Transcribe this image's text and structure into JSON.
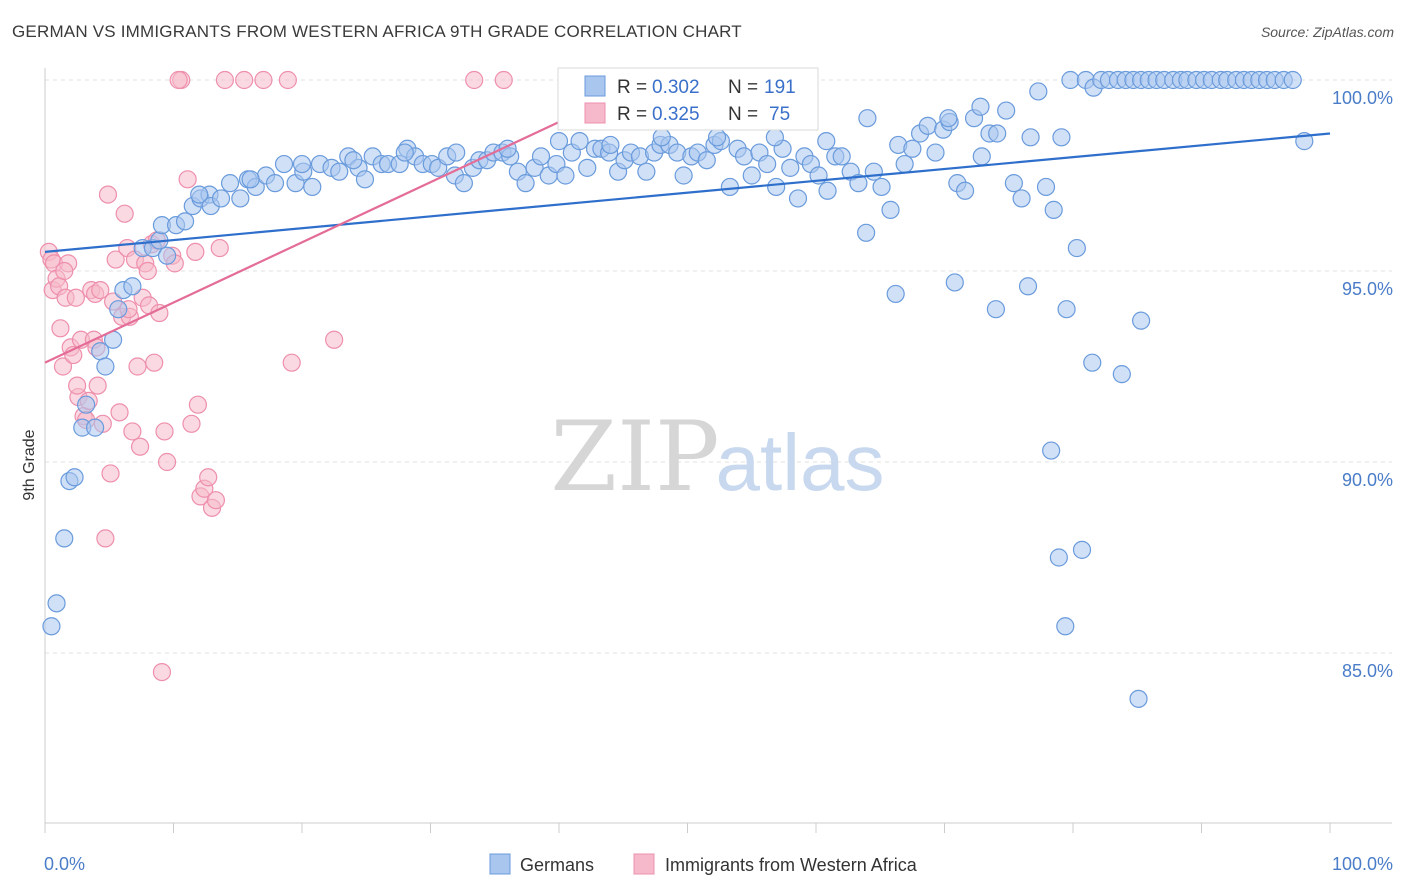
{
  "title": "GERMAN VS IMMIGRANTS FROM WESTERN AFRICA 9TH GRADE CORRELATION CHART",
  "source": "Source: ZipAtlas.com",
  "watermark": {
    "zip": "ZIP",
    "atlas": "atlas"
  },
  "colors": {
    "blue_fill": "#a9c6ee",
    "blue_stroke": "#6a9bdc",
    "blue_line": "#2f6fcc",
    "pink_fill": "#f6b9cb",
    "pink_stroke": "#ee8fac",
    "pink_line": "#e46d98",
    "grid": "#e2e2e2",
    "axis": "#cccccc",
    "tick_text": "#4a7cc8"
  },
  "legend": {
    "series": [
      {
        "r_label": "R = ",
        "r_value": "0.302",
        "n_label": "N = ",
        "n_value": "191"
      },
      {
        "r_label": "R = ",
        "r_value": "0.325",
        "n_label": "N = ",
        "n_value": "75"
      }
    ]
  },
  "chart_data": {
    "type": "scatter",
    "title": "GERMAN VS IMMIGRANTS FROM WESTERN AFRICA 9TH GRADE CORRELATION CHART",
    "xlabel": "",
    "ylabel": "9th Grade",
    "xlim": [
      0,
      100
    ],
    "ylim": [
      80.0,
      101.0
    ],
    "x_tick_labels": [
      "0.0%",
      "100.0%"
    ],
    "y_ticks": [
      85.0,
      90.0,
      95.0,
      100.0
    ],
    "y_tick_labels": [
      "85.0%",
      "90.0%",
      "95.0%",
      "100.0%"
    ],
    "grid": true,
    "legend_position": "top-center",
    "series": [
      {
        "name": "Germans",
        "color": "#a9c6ee",
        "trendline": {
          "x": [
            0,
            100
          ],
          "y": [
            95.5,
            98.6
          ]
        },
        "points": [
          [
            0.5,
            85.7
          ],
          [
            0.9,
            86.3
          ],
          [
            1.5,
            88.0
          ],
          [
            1.9,
            89.5
          ],
          [
            2.3,
            89.6
          ],
          [
            2.9,
            90.9
          ],
          [
            3.2,
            91.5
          ],
          [
            3.9,
            90.9
          ],
          [
            4.3,
            92.9
          ],
          [
            4.7,
            92.5
          ],
          [
            5.3,
            93.2
          ],
          [
            5.7,
            94.0
          ],
          [
            6.1,
            94.5
          ],
          [
            6.8,
            94.6
          ],
          [
            7.6,
            95.6
          ],
          [
            8.4,
            95.6
          ],
          [
            8.9,
            95.8
          ],
          [
            9.5,
            95.4
          ],
          [
            9.1,
            96.2
          ],
          [
            10.2,
            96.2
          ],
          [
            10.9,
            96.3
          ],
          [
            11.5,
            96.7
          ],
          [
            12.1,
            96.9
          ],
          [
            12.8,
            97.0
          ],
          [
            12.9,
            96.7
          ],
          [
            13.7,
            96.9
          ],
          [
            14.4,
            97.3
          ],
          [
            15.2,
            96.9
          ],
          [
            15.8,
            97.4
          ],
          [
            16.4,
            97.2
          ],
          [
            17.2,
            97.5
          ],
          [
            17.9,
            97.3
          ],
          [
            18.6,
            97.8
          ],
          [
            19.5,
            97.3
          ],
          [
            20.1,
            97.6
          ],
          [
            20.8,
            97.2
          ],
          [
            21.4,
            97.8
          ],
          [
            22.3,
            97.7
          ],
          [
            22.9,
            97.6
          ],
          [
            23.6,
            98.0
          ],
          [
            24.4,
            97.7
          ],
          [
            24.9,
            97.4
          ],
          [
            25.5,
            98.0
          ],
          [
            26.2,
            97.8
          ],
          [
            26.7,
            97.8
          ],
          [
            27.6,
            97.8
          ],
          [
            28.2,
            98.2
          ],
          [
            28.8,
            98.0
          ],
          [
            29.4,
            97.8
          ],
          [
            30.1,
            97.8
          ],
          [
            30.6,
            97.7
          ],
          [
            31.3,
            98.0
          ],
          [
            31.9,
            97.5
          ],
          [
            32.6,
            97.3
          ],
          [
            33.3,
            97.7
          ],
          [
            33.8,
            97.9
          ],
          [
            34.4,
            97.9
          ],
          [
            34.9,
            98.1
          ],
          [
            35.6,
            98.1
          ],
          [
            36.2,
            98.0
          ],
          [
            36.8,
            97.6
          ],
          [
            37.4,
            97.3
          ],
          [
            38.1,
            97.7
          ],
          [
            38.6,
            98.0
          ],
          [
            39.2,
            97.5
          ],
          [
            39.8,
            97.8
          ],
          [
            40.5,
            97.5
          ],
          [
            41.0,
            98.1
          ],
          [
            41.6,
            98.4
          ],
          [
            42.2,
            97.7
          ],
          [
            42.8,
            98.2
          ],
          [
            43.3,
            98.2
          ],
          [
            43.9,
            98.1
          ],
          [
            44.6,
            97.6
          ],
          [
            45.1,
            97.9
          ],
          [
            45.6,
            98.1
          ],
          [
            46.3,
            98.0
          ],
          [
            46.8,
            97.6
          ],
          [
            47.4,
            98.1
          ],
          [
            47.9,
            98.3
          ],
          [
            48.6,
            98.3
          ],
          [
            49.2,
            98.1
          ],
          [
            49.7,
            97.5
          ],
          [
            50.3,
            98.0
          ],
          [
            50.8,
            98.1
          ],
          [
            51.5,
            97.9
          ],
          [
            52.1,
            98.3
          ],
          [
            52.6,
            98.4
          ],
          [
            53.3,
            97.2
          ],
          [
            53.9,
            98.2
          ],
          [
            54.4,
            98.0
          ],
          [
            55.0,
            97.5
          ],
          [
            55.6,
            98.1
          ],
          [
            56.2,
            97.8
          ],
          [
            56.9,
            97.2
          ],
          [
            57.4,
            98.2
          ],
          [
            58.0,
            97.7
          ],
          [
            58.6,
            96.9
          ],
          [
            59.1,
            98.0
          ],
          [
            59.6,
            97.8
          ],
          [
            60.2,
            97.5
          ],
          [
            60.9,
            97.1
          ],
          [
            61.5,
            98.0
          ],
          [
            62.0,
            98.0
          ],
          [
            62.7,
            97.6
          ],
          [
            63.3,
            97.3
          ],
          [
            63.9,
            96.0
          ],
          [
            64.5,
            97.6
          ],
          [
            65.1,
            97.2
          ],
          [
            65.8,
            96.6
          ],
          [
            66.4,
            98.3
          ],
          [
            66.9,
            97.8
          ],
          [
            67.5,
            98.2
          ],
          [
            68.1,
            98.6
          ],
          [
            68.7,
            98.8
          ],
          [
            69.3,
            98.1
          ],
          [
            69.9,
            98.7
          ],
          [
            70.4,
            98.9
          ],
          [
            71.0,
            97.3
          ],
          [
            71.6,
            97.1
          ],
          [
            72.3,
            99.0
          ],
          [
            72.9,
            98.0
          ],
          [
            73.5,
            98.6
          ],
          [
            74.1,
            98.6
          ],
          [
            74.8,
            99.2
          ],
          [
            75.4,
            97.3
          ],
          [
            76.0,
            96.9
          ],
          [
            76.7,
            98.5
          ],
          [
            77.3,
            99.7
          ],
          [
            77.9,
            97.2
          ],
          [
            78.5,
            96.6
          ],
          [
            79.1,
            98.5
          ],
          [
            79.8,
            100.0
          ],
          [
            80.3,
            95.6
          ],
          [
            81.0,
            100.0
          ],
          [
            81.6,
            99.8
          ],
          [
            82.2,
            100.0
          ],
          [
            82.8,
            100.0
          ],
          [
            83.5,
            100.0
          ],
          [
            84.1,
            100.0
          ],
          [
            84.7,
            100.0
          ],
          [
            85.3,
            100.0
          ],
          [
            85.9,
            100.0
          ],
          [
            86.5,
            100.0
          ],
          [
            87.1,
            100.0
          ],
          [
            87.8,
            100.0
          ],
          [
            88.4,
            100.0
          ],
          [
            88.9,
            100.0
          ],
          [
            89.6,
            100.0
          ],
          [
            90.2,
            100.0
          ],
          [
            90.8,
            100.0
          ],
          [
            91.5,
            100.0
          ],
          [
            92.0,
            100.0
          ],
          [
            92.7,
            100.0
          ],
          [
            93.3,
            100.0
          ],
          [
            93.9,
            100.0
          ],
          [
            94.5,
            100.0
          ],
          [
            95.1,
            100.0
          ],
          [
            95.7,
            100.0
          ],
          [
            96.4,
            100.0
          ],
          [
            97.1,
            100.0
          ],
          [
            98.0,
            98.4
          ],
          [
            66.2,
            94.4
          ],
          [
            70.8,
            94.7
          ],
          [
            74.0,
            94.0
          ],
          [
            76.5,
            94.6
          ],
          [
            79.5,
            94.0
          ],
          [
            81.5,
            92.6
          ],
          [
            83.8,
            92.3
          ],
          [
            85.3,
            93.7
          ],
          [
            78.3,
            90.3
          ],
          [
            78.9,
            87.5
          ],
          [
            80.7,
            87.7
          ],
          [
            79.4,
            85.7
          ],
          [
            85.1,
            83.8
          ],
          [
            72.8,
            99.3
          ],
          [
            70.3,
            99.0
          ],
          [
            64.0,
            99.0
          ],
          [
            60.8,
            98.4
          ],
          [
            56.8,
            98.5
          ],
          [
            52.3,
            98.5
          ],
          [
            48.0,
            98.5
          ],
          [
            44.0,
            98.3
          ],
          [
            40.0,
            98.4
          ],
          [
            36.0,
            98.2
          ],
          [
            32.0,
            98.1
          ],
          [
            28.0,
            98.1
          ],
          [
            24.0,
            97.9
          ],
          [
            20.0,
            97.8
          ],
          [
            16.0,
            97.4
          ],
          [
            12.0,
            97.0
          ]
        ]
      },
      {
        "name": "Immigrants from Western Africa",
        "color": "#f6b9cb",
        "trendline": {
          "x": [
            0,
            40
          ],
          "y": [
            92.6,
            98.9
          ]
        },
        "points": [
          [
            0.3,
            95.5
          ],
          [
            0.5,
            95.3
          ],
          [
            0.6,
            94.5
          ],
          [
            0.7,
            95.2
          ],
          [
            0.9,
            94.8
          ],
          [
            1.1,
            94.6
          ],
          [
            1.2,
            93.5
          ],
          [
            1.4,
            92.5
          ],
          [
            1.6,
            94.3
          ],
          [
            1.8,
            95.2
          ],
          [
            2.0,
            93.0
          ],
          [
            2.2,
            92.8
          ],
          [
            2.4,
            94.3
          ],
          [
            2.6,
            91.7
          ],
          [
            2.8,
            93.2
          ],
          [
            3.0,
            91.2
          ],
          [
            3.2,
            91.1
          ],
          [
            3.4,
            91.6
          ],
          [
            3.6,
            94.5
          ],
          [
            3.8,
            93.2
          ],
          [
            3.9,
            94.4
          ],
          [
            4.1,
            92.0
          ],
          [
            4.3,
            94.5
          ],
          [
            4.5,
            91.0
          ],
          [
            4.7,
            88.0
          ],
          [
            4.9,
            97.0
          ],
          [
            5.1,
            89.7
          ],
          [
            5.3,
            94.2
          ],
          [
            5.5,
            95.3
          ],
          [
            5.8,
            91.3
          ],
          [
            6.0,
            93.8
          ],
          [
            6.2,
            96.5
          ],
          [
            6.4,
            95.6
          ],
          [
            6.6,
            93.8
          ],
          [
            6.8,
            90.8
          ],
          [
            7.0,
            95.3
          ],
          [
            7.2,
            92.5
          ],
          [
            7.4,
            90.4
          ],
          [
            7.6,
            94.3
          ],
          [
            7.8,
            95.2
          ],
          [
            8.1,
            94.1
          ],
          [
            8.3,
            95.7
          ],
          [
            8.5,
            92.6
          ],
          [
            8.7,
            95.8
          ],
          [
            8.9,
            93.9
          ],
          [
            9.1,
            84.5
          ],
          [
            9.3,
            90.8
          ],
          [
            9.5,
            90.0
          ],
          [
            9.9,
            95.4
          ],
          [
            10.1,
            95.2
          ],
          [
            10.6,
            100.0
          ],
          [
            11.1,
            97.4
          ],
          [
            11.4,
            91.0
          ],
          [
            11.7,
            95.5
          ],
          [
            11.9,
            91.5
          ],
          [
            12.1,
            89.1
          ],
          [
            12.4,
            89.3
          ],
          [
            12.7,
            89.6
          ],
          [
            13.0,
            88.8
          ],
          [
            13.3,
            89.0
          ],
          [
            13.6,
            95.6
          ],
          [
            14.0,
            100.0
          ],
          [
            15.5,
            100.0
          ],
          [
            17.0,
            100.0
          ],
          [
            18.9,
            100.0
          ],
          [
            19.2,
            92.6
          ],
          [
            22.5,
            93.2
          ],
          [
            33.4,
            100.0
          ],
          [
            35.7,
            100.0
          ],
          [
            10.4,
            100.0
          ],
          [
            8.0,
            95.0
          ],
          [
            6.5,
            94.0
          ],
          [
            4.0,
            93.0
          ],
          [
            2.5,
            92.0
          ],
          [
            1.5,
            95.0
          ]
        ]
      }
    ]
  }
}
